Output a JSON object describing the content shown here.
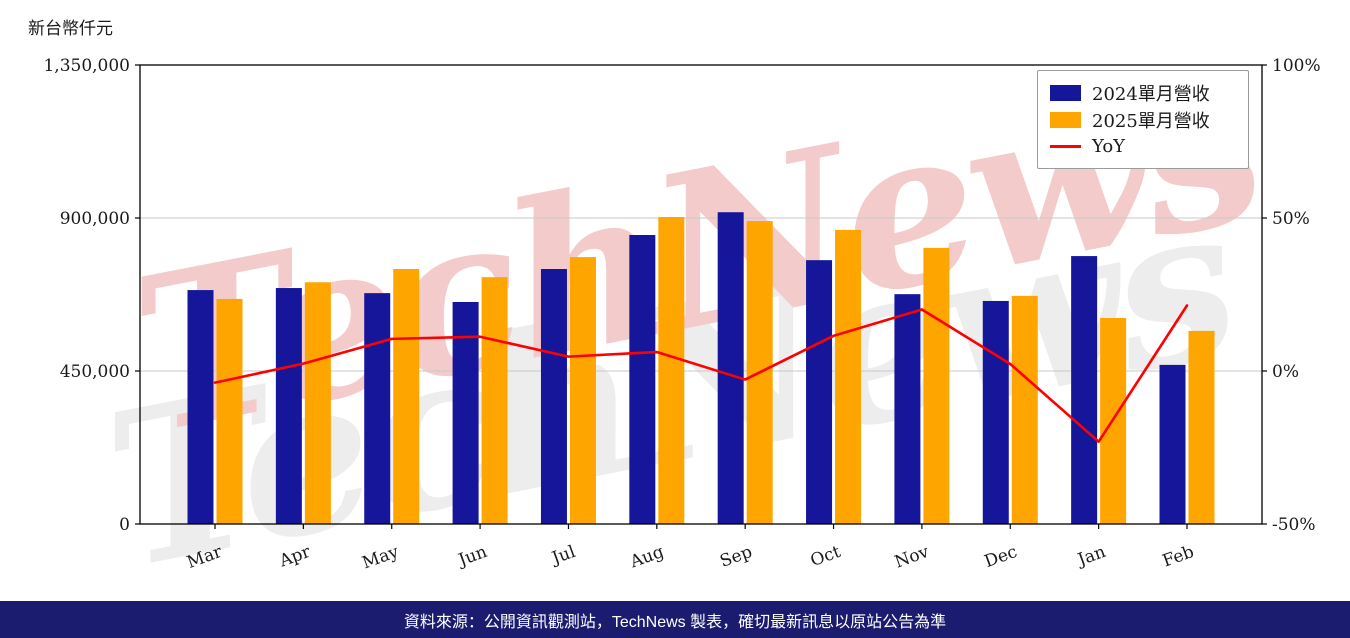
{
  "unit_label": "新台幣仟元",
  "watermark": {
    "text": "TechNews"
  },
  "footer": {
    "text": "資料來源：公開資訊觀測站，TechNews 製表，確切最新訊息以原站公告為準"
  },
  "colors": {
    "bar_2024": "#16169b",
    "bar_2025": "#ffa500",
    "yoy_line": "#ff0000",
    "grid": "#c9c9c9",
    "axis": "#000000",
    "footer_bg": "#1b1b6f",
    "watermark": "#f2c6c6"
  },
  "legend": {
    "items": [
      {
        "label": "2024單月營收"
      },
      {
        "label": "2025單月營收"
      },
      {
        "label": "YoY"
      }
    ]
  },
  "axes": {
    "left_ticks": [
      "0",
      "450,000",
      "900,000",
      "1,350,000"
    ],
    "left_tick_values": [
      0,
      450000,
      900000,
      1350000
    ],
    "right_ticks": [
      "-50%",
      "0%",
      "50%",
      "100%"
    ],
    "right_tick_values": [
      -50,
      0,
      50,
      100
    ]
  },
  "chart_data": {
    "type": "bar+line",
    "title": "",
    "ylabel": "新台幣仟元",
    "categories": [
      "Mar",
      "Apr",
      "May",
      "Jun",
      "Jul",
      "Aug",
      "Sep",
      "Oct",
      "Nov",
      "Dec",
      "Jan",
      "Feb"
    ],
    "series": [
      {
        "name": "2024單月營收",
        "type": "bar",
        "axis": "left",
        "color": "#16169b",
        "values": [
          688000,
          694000,
          679000,
          653000,
          750000,
          850000,
          917000,
          776000,
          676000,
          656000,
          788000,
          468000
        ]
      },
      {
        "name": "2025單月營收",
        "type": "bar",
        "axis": "left",
        "color": "#ffa500",
        "values": [
          662000,
          711000,
          750000,
          726000,
          785000,
          903000,
          891000,
          865000,
          812000,
          671000,
          606000,
          568000
        ]
      },
      {
        "name": "YoY",
        "type": "line",
        "axis": "right",
        "color": "#ff0000",
        "values": [
          -3.8,
          2.4,
          10.5,
          11.2,
          4.7,
          6.2,
          -2.8,
          11.5,
          20.1,
          2.3,
          -23.1,
          21.4
        ]
      }
    ],
    "ylim_left": [
      0,
      1350000
    ],
    "ylim_right": [
      -50,
      100
    ],
    "grid": true,
    "legend_position": "upper right"
  }
}
